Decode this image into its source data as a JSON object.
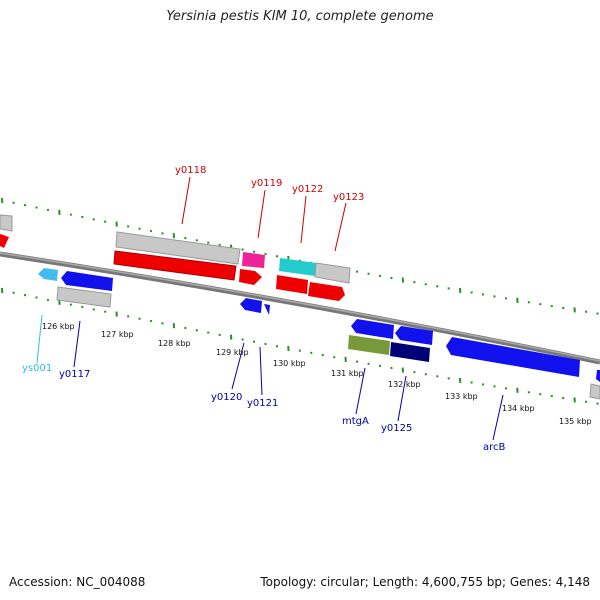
{
  "title": "Yersinia pestis KIM 10, complete genome",
  "footer": {
    "accession": "Accession: NC_004088",
    "summary": "Topology: circular; Length: 4,600,755 bp; Genes: 4,148"
  },
  "colors": {
    "backbone": "#888888",
    "tick": "#2e8b2e",
    "label_red": "#cc0000",
    "label_blue": "#0000aa",
    "label_cyan": "#33bbdd",
    "gray": "#c0c0c0",
    "red": "#ee0000",
    "blue": "#1111ee",
    "magenta": "#ee2299",
    "cyan": "#22cccc",
    "olive": "#77993a",
    "navy": "#000077",
    "lightblue": "#44bbee"
  },
  "scale_labels": [
    "126 kbp",
    "127 kbp",
    "128 kbp",
    "129 kbp",
    "130 kbp",
    "131 kbp",
    "132 kbp",
    "133 kbp",
    "134 kbp",
    "135 kbp"
  ],
  "genes_top": [
    "y0118",
    "y0119",
    "y0122",
    "y0123"
  ],
  "genes_bottom": [
    "ys001",
    "y0117",
    "y0120",
    "y0121",
    "mtgA",
    "y0125",
    "arcB"
  ]
}
